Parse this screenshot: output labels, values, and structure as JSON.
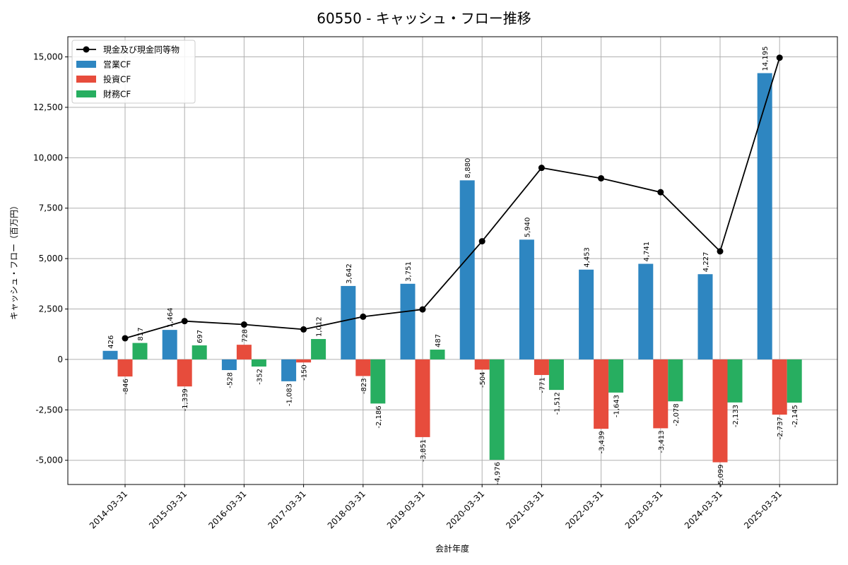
{
  "chart_data": {
    "type": "bar",
    "title": "60550 - キャッシュ・フロー推移",
    "xlabel": "会計年度",
    "ylabel": "キャッシュ・フロー（百万円）",
    "ylim": [
      -6200,
      16000
    ],
    "yticks": [
      -5000,
      -2500,
      0,
      2500,
      5000,
      7500,
      10000,
      12500,
      15000
    ],
    "ytick_labels": [
      "-5,000",
      "-2,500",
      "0",
      "2,500",
      "5,000",
      "7,500",
      "10,000",
      "12,500",
      "15,000"
    ],
    "grid": true,
    "legend_position": "top-left",
    "categories": [
      "2014-03-31",
      "2015-03-31",
      "2016-03-31",
      "2017-03-31",
      "2018-03-31",
      "2019-03-31",
      "2020-03-31",
      "2021-03-31",
      "2022-03-31",
      "2023-03-31",
      "2024-03-31",
      "2025-03-31"
    ],
    "series": [
      {
        "name": "営業CF",
        "kind": "bar",
        "color": "#2e86c1",
        "values": [
          426,
          1464,
          -528,
          -1083,
          3642,
          3751,
          8880,
          5940,
          4453,
          4741,
          4227,
          14195
        ],
        "labels": [
          "426",
          "1,464",
          "-528",
          "-1,083",
          "3,642",
          "3,751",
          "8,880",
          "5,940",
          "4,453",
          "4,741",
          "4,227",
          "14,195"
        ]
      },
      {
        "name": "投資CF",
        "kind": "bar",
        "color": "#e74c3c",
        "values": [
          -846,
          -1339,
          728,
          -150,
          -823,
          -3851,
          -504,
          -771,
          -3439,
          -3413,
          -5099,
          -2737
        ],
        "labels": [
          "-846",
          "-1,339",
          "728",
          "-150",
          "-823",
          "-3,851",
          "-504",
          "-771",
          "-3,439",
          "-3,413",
          "-5,099",
          "-2,737"
        ]
      },
      {
        "name": "財務CF",
        "kind": "bar",
        "color": "#27ae60",
        "values": [
          817,
          697,
          -352,
          1012,
          -2186,
          487,
          -4976,
          -1512,
          -1643,
          -2078,
          -2133,
          -2145
        ],
        "labels": [
          "817",
          "697",
          "-352",
          "1,012",
          "-2,186",
          "487",
          "-4,976",
          "-1,512",
          "-1,643",
          "-2,078",
          "-2,133",
          "-2,145"
        ]
      },
      {
        "name": "現金及び現金同等物",
        "kind": "line",
        "color": "#000000",
        "values": [
          1050,
          1900,
          1730,
          1490,
          2120,
          2480,
          5860,
          9500,
          8980,
          8290,
          5360,
          14960
        ]
      }
    ]
  }
}
